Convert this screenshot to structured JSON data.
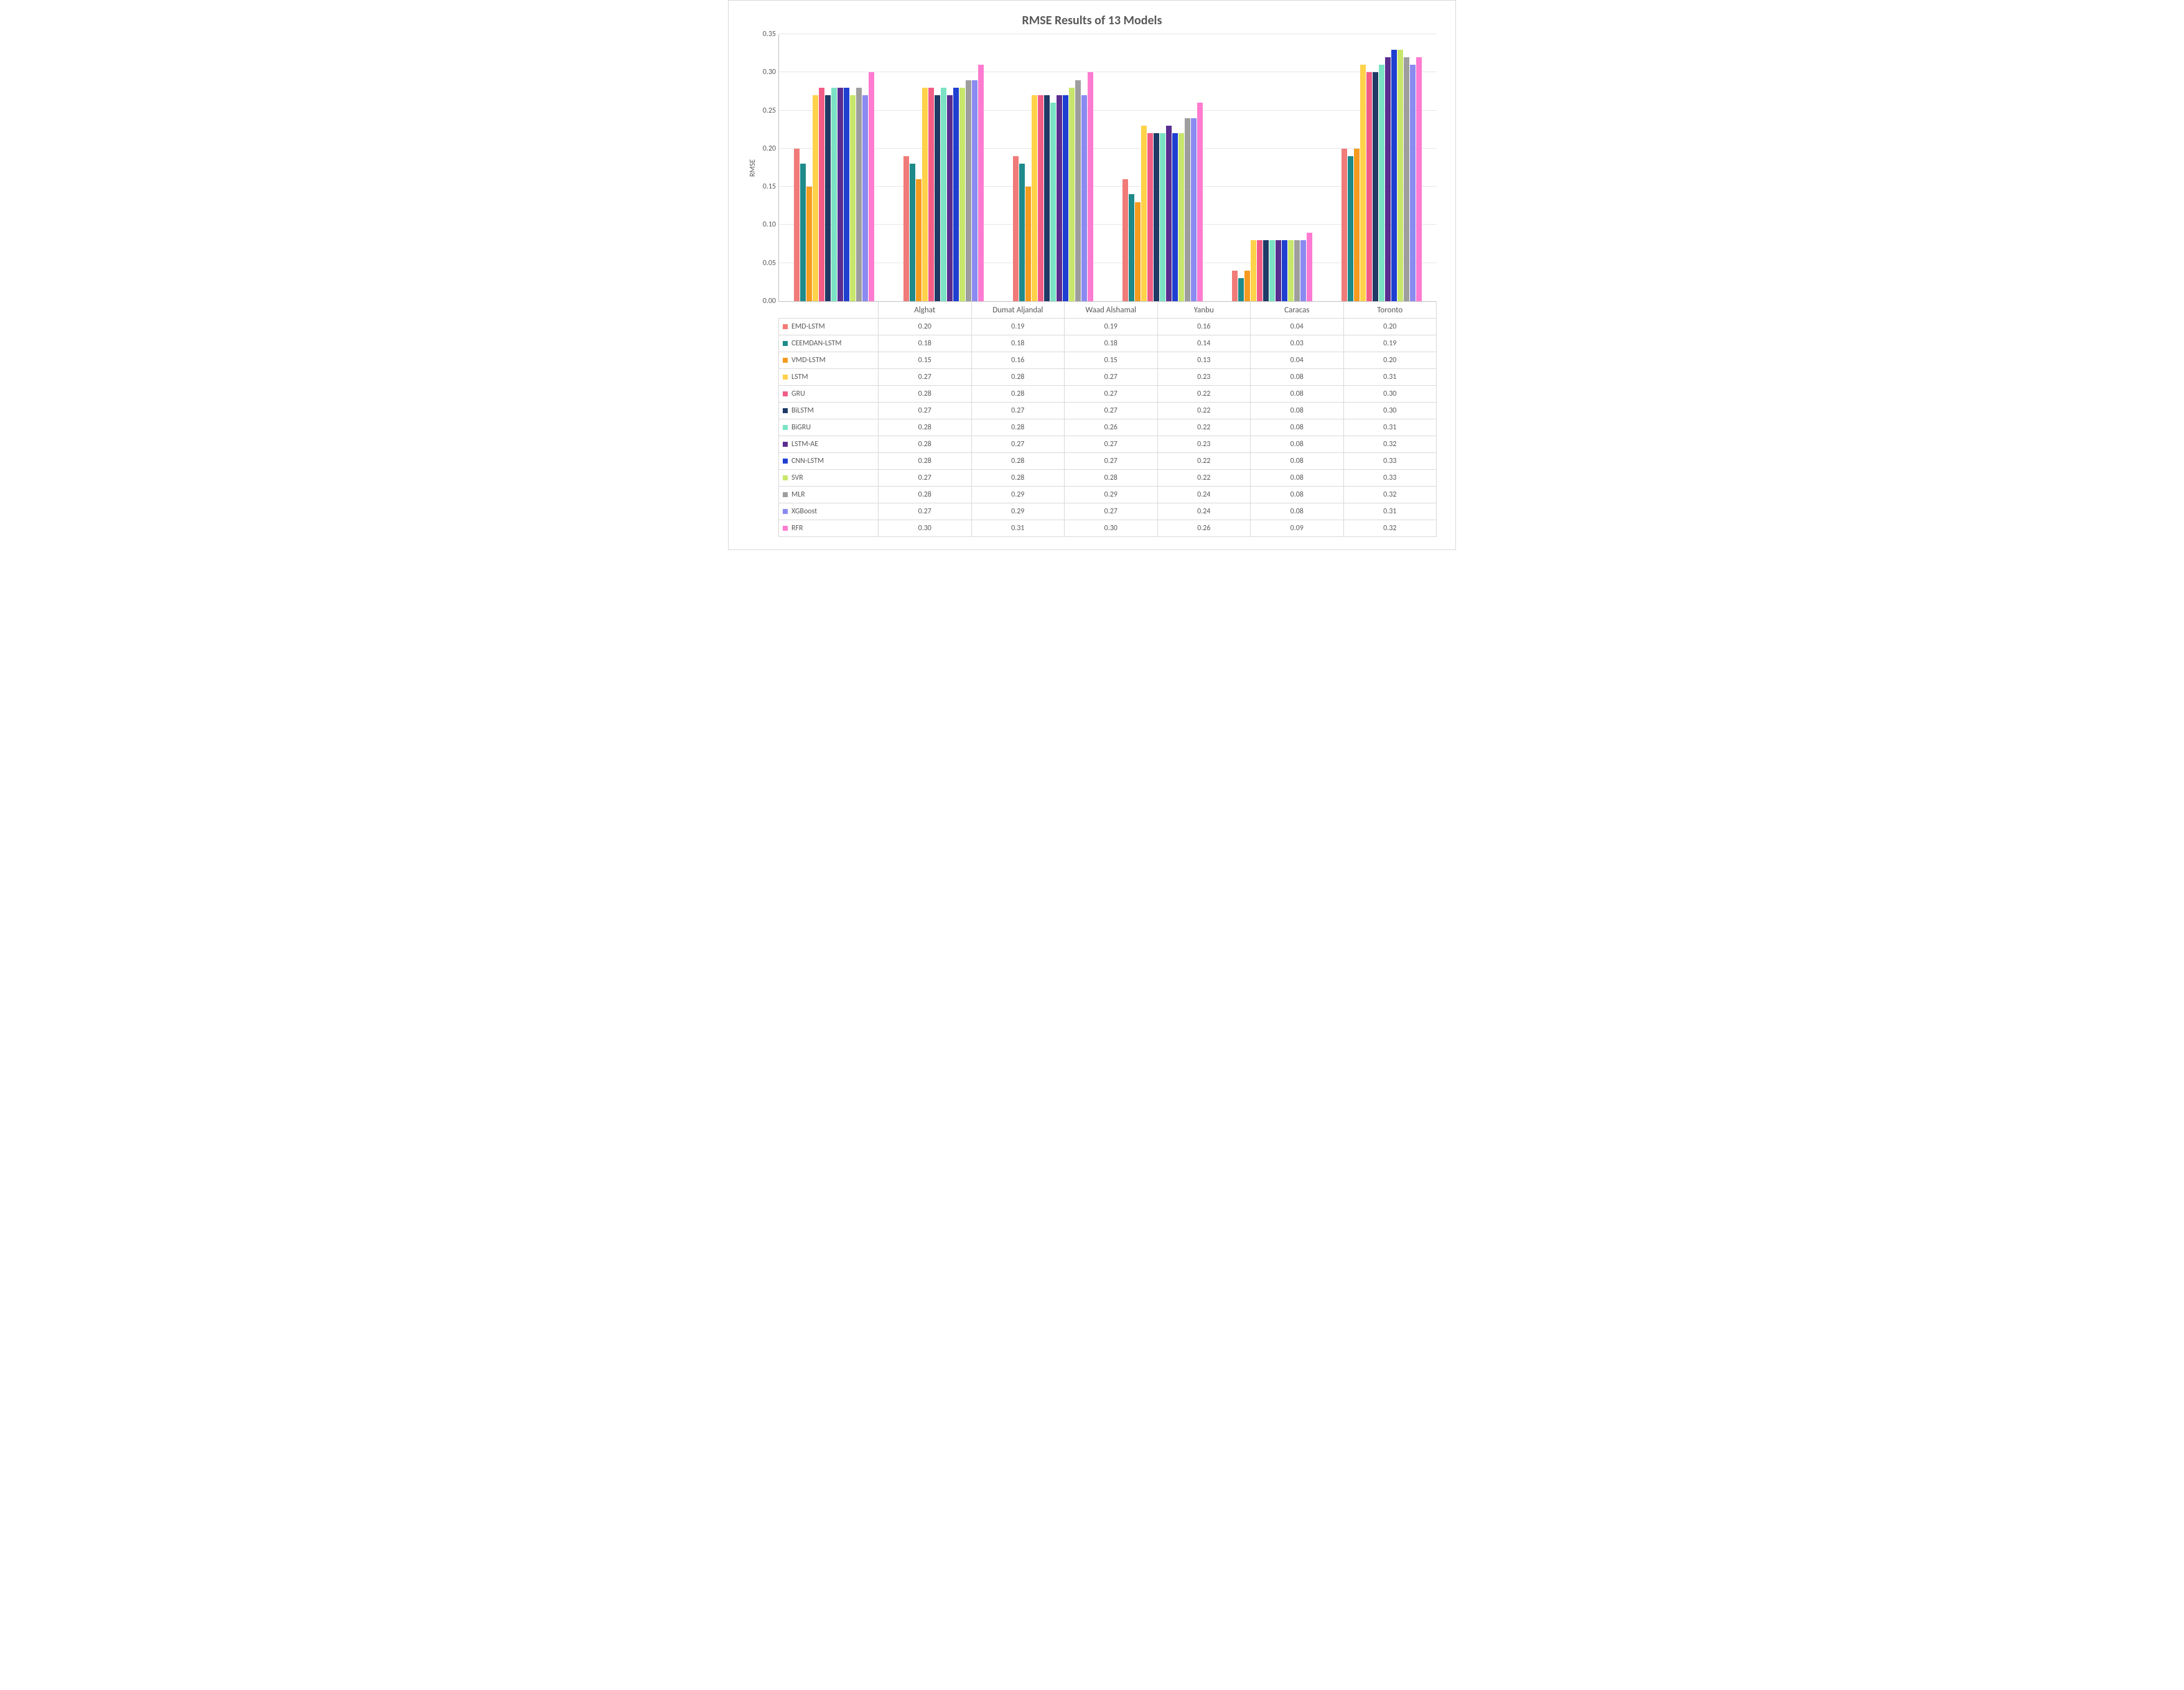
{
  "chart": {
    "title": "RMSE Results of 13 Models",
    "y_label": "RMSE",
    "y_min": 0.0,
    "y_max": 0.35,
    "y_tick_step": 0.05,
    "y_ticks": [
      "0.00",
      "0.05",
      "0.10",
      "0.15",
      "0.20",
      "0.25",
      "0.30",
      "0.35"
    ],
    "background_color": "#ffffff",
    "grid_color": "#e6e6e6",
    "axis_color": "#bfbfbf",
    "text_color": "#595959",
    "title_fontsize_pt": 15,
    "label_fontsize_pt": 9,
    "categories": [
      "Alghat",
      "Dumat Aljandal",
      "Waad Alshamal",
      "Yanbu",
      "Caracas",
      "Toronto"
    ],
    "series": [
      {
        "name": "EMD-LSTM",
        "color": "#f07b78",
        "values": [
          0.2,
          0.19,
          0.19,
          0.16,
          0.04,
          0.2
        ]
      },
      {
        "name": "CEEMDAN-LSTM",
        "color": "#1f8a8a",
        "values": [
          0.18,
          0.18,
          0.18,
          0.14,
          0.03,
          0.19
        ]
      },
      {
        "name": "VMD-LSTM",
        "color": "#f59b1f",
        "values": [
          0.15,
          0.16,
          0.15,
          0.13,
          0.04,
          0.2
        ]
      },
      {
        "name": "LSTM",
        "color": "#ffd24a",
        "values": [
          0.27,
          0.28,
          0.27,
          0.23,
          0.08,
          0.31
        ]
      },
      {
        "name": "GRU",
        "color": "#f25d86",
        "values": [
          0.28,
          0.28,
          0.27,
          0.22,
          0.08,
          0.3
        ]
      },
      {
        "name": "BiLSTM",
        "color": "#1f3a66",
        "values": [
          0.27,
          0.27,
          0.27,
          0.22,
          0.08,
          0.3
        ]
      },
      {
        "name": "BiGRU",
        "color": "#7be3c4",
        "values": [
          0.28,
          0.28,
          0.26,
          0.22,
          0.08,
          0.31
        ]
      },
      {
        "name": "LSTM-AE",
        "color": "#5a2d91",
        "values": [
          0.28,
          0.27,
          0.27,
          0.23,
          0.08,
          0.32
        ]
      },
      {
        "name": "CNN-LSTM",
        "color": "#1f3fd1",
        "values": [
          0.28,
          0.28,
          0.27,
          0.22,
          0.08,
          0.33
        ]
      },
      {
        "name": "SVR",
        "color": "#c7e66b",
        "values": [
          0.27,
          0.28,
          0.28,
          0.22,
          0.08,
          0.33
        ]
      },
      {
        "name": "MLR",
        "color": "#9e9e9e",
        "values": [
          0.28,
          0.29,
          0.29,
          0.24,
          0.08,
          0.32
        ]
      },
      {
        "name": "XGBoost",
        "color": "#8a8af0",
        "values": [
          0.27,
          0.29,
          0.27,
          0.24,
          0.08,
          0.31
        ]
      },
      {
        "name": "RFR",
        "color": "#ff7bd1",
        "values": [
          0.3,
          0.31,
          0.3,
          0.26,
          0.09,
          0.32
        ]
      }
    ]
  }
}
